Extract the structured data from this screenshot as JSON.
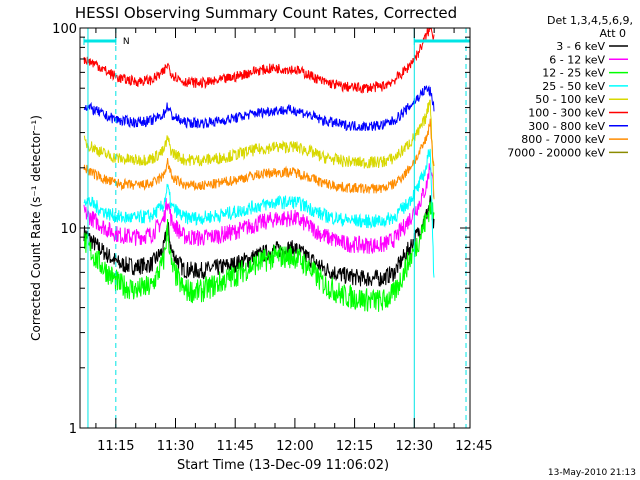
{
  "chart_data": {
    "type": "line",
    "title": "HESSI Observing Summary Count Rates, Corrected",
    "xlabel": "Start Time (13-Dec-09 11:06:02)",
    "ylabel": "Corrected Count Rate (s⁻¹ detector⁻¹)",
    "yscale": "log",
    "ylim": [
      1,
      100
    ],
    "xlim": [
      "11:06",
      "12:44"
    ],
    "x_ticks": [
      "11:15",
      "11:30",
      "11:45",
      "12:00",
      "12:15",
      "12:30",
      "12:45"
    ],
    "y_ticks": [
      "1",
      "10",
      "100"
    ],
    "legend_header": [
      "Det 1,3,4,5,6,9,",
      "Att 0"
    ],
    "legend_position": "right",
    "timestamp": "13-May-2010 21:13",
    "annotation_label": "N",
    "annotation_interval": [
      "11:07",
      "11:15"
    ],
    "annotation_interval_2": [
      "12:30",
      "12:44"
    ],
    "vertical_markers": [
      {
        "time": "11:08",
        "style": "solid",
        "color": "#00e5e5"
      },
      {
        "time": "11:15",
        "style": "dashed",
        "color": "#00e5e5"
      },
      {
        "time": "12:30",
        "style": "solid",
        "color": "#00e5e5"
      },
      {
        "time": "12:43",
        "style": "dashed",
        "color": "#00e5e5"
      }
    ],
    "series": [
      {
        "name": "3 - 6 keV",
        "color": "#000000",
        "points": [
          [
            "11:07",
            9.5
          ],
          [
            "11:10",
            8.2
          ],
          [
            "11:13",
            7.3
          ],
          [
            "11:16",
            6.6
          ],
          [
            "11:20",
            6.4
          ],
          [
            "11:24",
            6.6
          ],
          [
            "11:27",
            7.8
          ],
          [
            "11:28",
            10.5
          ],
          [
            "11:29",
            7.6
          ],
          [
            "11:32",
            6.2
          ],
          [
            "11:36",
            6.1
          ],
          [
            "11:40",
            6.3
          ],
          [
            "11:45",
            6.6
          ],
          [
            "11:50",
            7.2
          ],
          [
            "11:55",
            7.8
          ],
          [
            "12:00",
            7.9
          ],
          [
            "12:03",
            7.2
          ],
          [
            "12:07",
            6.3
          ],
          [
            "12:12",
            5.8
          ],
          [
            "12:17",
            5.6
          ],
          [
            "12:22",
            5.6
          ],
          [
            "12:25",
            6.0
          ],
          [
            "12:28",
            7.5
          ],
          [
            "12:31",
            9.5
          ],
          [
            "12:33",
            11.5
          ],
          [
            "12:34",
            13.5
          ],
          [
            "12:35",
            10.0
          ]
        ]
      },
      {
        "name": "6 - 12 keV",
        "color": "#ff00ff",
        "points": [
          [
            "11:07",
            12.0
          ],
          [
            "11:10",
            10.8
          ],
          [
            "11:13",
            9.8
          ],
          [
            "11:16",
            9.2
          ],
          [
            "11:20",
            9.0
          ],
          [
            "11:24",
            9.3
          ],
          [
            "11:27",
            11.0
          ],
          [
            "11:28",
            14.0
          ],
          [
            "11:29",
            10.8
          ],
          [
            "11:32",
            9.1
          ],
          [
            "11:36",
            8.9
          ],
          [
            "11:40",
            9.1
          ],
          [
            "11:45",
            9.6
          ],
          [
            "11:50",
            10.4
          ],
          [
            "11:55",
            11.1
          ],
          [
            "12:00",
            11.2
          ],
          [
            "12:03",
            10.4
          ],
          [
            "12:07",
            9.2
          ],
          [
            "12:12",
            8.4
          ],
          [
            "12:17",
            8.2
          ],
          [
            "12:22",
            8.2
          ],
          [
            "12:25",
            8.8
          ],
          [
            "12:28",
            10.5
          ],
          [
            "12:31",
            13.0
          ],
          [
            "12:33",
            16.0
          ],
          [
            "12:34",
            21.0
          ],
          [
            "12:35",
            15.0
          ]
        ]
      },
      {
        "name": "12 - 25 keV",
        "color": "#00ff00",
        "points": [
          [
            "11:07",
            8.6
          ],
          [
            "11:10",
            7.0
          ],
          [
            "11:13",
            6.0
          ],
          [
            "11:16",
            5.2
          ],
          [
            "11:20",
            4.9
          ],
          [
            "11:24",
            5.1
          ],
          [
            "11:27",
            6.8
          ],
          [
            "11:28",
            10.0
          ],
          [
            "11:29",
            6.4
          ],
          [
            "11:32",
            4.9
          ],
          [
            "11:36",
            4.8
          ],
          [
            "11:40",
            5.2
          ],
          [
            "11:45",
            5.8
          ],
          [
            "11:50",
            6.6
          ],
          [
            "11:55",
            7.2
          ],
          [
            "12:00",
            7.2
          ],
          [
            "12:03",
            6.5
          ],
          [
            "12:07",
            5.3
          ],
          [
            "12:12",
            4.6
          ],
          [
            "12:17",
            4.4
          ],
          [
            "12:22",
            4.3
          ],
          [
            "12:25",
            4.7
          ],
          [
            "12:28",
            6.4
          ],
          [
            "12:31",
            8.6
          ],
          [
            "12:33",
            11.0
          ],
          [
            "12:34",
            13.0
          ],
          [
            "12:35",
            11.0
          ]
        ]
      },
      {
        "name": "25 - 50 keV",
        "color": "#00ffff",
        "points": [
          [
            "11:07",
            14.2
          ],
          [
            "11:10",
            12.8
          ],
          [
            "11:13",
            11.8
          ],
          [
            "11:16",
            11.3
          ],
          [
            "11:20",
            11.2
          ],
          [
            "11:24",
            11.5
          ],
          [
            "11:27",
            13.0
          ],
          [
            "11:28",
            16.0
          ],
          [
            "11:29",
            12.8
          ],
          [
            "11:32",
            11.3
          ],
          [
            "11:36",
            11.2
          ],
          [
            "11:40",
            11.5
          ],
          [
            "11:45",
            12.0
          ],
          [
            "11:50",
            12.8
          ],
          [
            "11:55",
            13.4
          ],
          [
            "12:00",
            13.5
          ],
          [
            "12:03",
            12.8
          ],
          [
            "12:07",
            11.6
          ],
          [
            "12:12",
            11.0
          ],
          [
            "12:17",
            10.8
          ],
          [
            "12:22",
            10.8
          ],
          [
            "12:25",
            11.4
          ],
          [
            "12:28",
            13.0
          ],
          [
            "12:31",
            16.0
          ],
          [
            "12:33",
            20.0
          ],
          [
            "12:34",
            26.0
          ],
          [
            "12:35",
            5.0
          ]
        ]
      },
      {
        "name": "50 - 100 keV",
        "color": "#d8d800",
        "points": [
          [
            "11:07",
            27.0
          ],
          [
            "11:10",
            24.8
          ],
          [
            "11:13",
            23.0
          ],
          [
            "11:16",
            22.2
          ],
          [
            "11:20",
            21.8
          ],
          [
            "11:24",
            22.2
          ],
          [
            "11:27",
            24.2
          ],
          [
            "11:28",
            28.0
          ],
          [
            "11:29",
            24.0
          ],
          [
            "11:32",
            22.0
          ],
          [
            "11:36",
            21.8
          ],
          [
            "11:40",
            22.2
          ],
          [
            "11:45",
            23.2
          ],
          [
            "11:50",
            24.6
          ],
          [
            "11:55",
            25.4
          ],
          [
            "12:00",
            25.5
          ],
          [
            "12:03",
            24.5
          ],
          [
            "12:07",
            22.6
          ],
          [
            "12:12",
            21.6
          ],
          [
            "12:17",
            21.2
          ],
          [
            "12:22",
            21.4
          ],
          [
            "12:25",
            22.4
          ],
          [
            "12:28",
            25.5
          ],
          [
            "12:31",
            30.0
          ],
          [
            "12:33",
            36.0
          ],
          [
            "12:34",
            45.0
          ],
          [
            "12:35",
            14.0
          ]
        ]
      },
      {
        "name": "100 - 300 keV",
        "color": "#ff0000",
        "points": [
          [
            "11:07",
            70.0
          ],
          [
            "11:10",
            66.0
          ],
          [
            "11:13",
            60.0
          ],
          [
            "11:16",
            56.0
          ],
          [
            "11:20",
            54.0
          ],
          [
            "11:24",
            55.0
          ],
          [
            "11:27",
            60.0
          ],
          [
            "11:28",
            66.0
          ],
          [
            "11:29",
            59.0
          ],
          [
            "11:32",
            54.0
          ],
          [
            "11:36",
            53.0
          ],
          [
            "11:40",
            54.0
          ],
          [
            "11:45",
            57.0
          ],
          [
            "11:50",
            61.0
          ],
          [
            "11:55",
            63.0
          ],
          [
            "12:00",
            62.0
          ],
          [
            "12:03",
            59.0
          ],
          [
            "12:07",
            54.0
          ],
          [
            "12:12",
            51.0
          ],
          [
            "12:17",
            50.0
          ],
          [
            "12:22",
            51.0
          ],
          [
            "12:25",
            55.0
          ],
          [
            "12:28",
            62.0
          ],
          [
            "12:31",
            75.0
          ],
          [
            "12:33",
            92.0
          ],
          [
            "12:34",
            100.0
          ],
          [
            "12:35",
            90.0
          ]
        ]
      },
      {
        "name": "300 - 800 keV",
        "color": "#0000ff",
        "points": [
          [
            "11:07",
            41.0
          ],
          [
            "11:10",
            38.5
          ],
          [
            "11:13",
            36.0
          ],
          [
            "11:16",
            34.5
          ],
          [
            "11:20",
            33.8
          ],
          [
            "11:24",
            34.4
          ],
          [
            "11:27",
            37.0
          ],
          [
            "11:28",
            41.0
          ],
          [
            "11:29",
            36.5
          ],
          [
            "11:32",
            33.8
          ],
          [
            "11:36",
            33.4
          ],
          [
            "11:40",
            34.0
          ],
          [
            "11:45",
            35.5
          ],
          [
            "11:50",
            37.5
          ],
          [
            "11:55",
            38.8
          ],
          [
            "12:00",
            38.8
          ],
          [
            "12:03",
            37.2
          ],
          [
            "12:07",
            34.5
          ],
          [
            "12:12",
            32.8
          ],
          [
            "12:17",
            32.2
          ],
          [
            "12:22",
            32.6
          ],
          [
            "12:25",
            34.5
          ],
          [
            "12:28",
            39.0
          ],
          [
            "12:31",
            45.0
          ],
          [
            "12:33",
            50.0
          ],
          [
            "12:34",
            48.0
          ],
          [
            "12:35",
            40.0
          ]
        ]
      },
      {
        "name": "800 - 7000 keV",
        "color": "#ff8c00",
        "points": [
          [
            "11:07",
            20.0
          ],
          [
            "11:10",
            18.4
          ],
          [
            "11:13",
            17.2
          ],
          [
            "11:16",
            16.6
          ],
          [
            "11:20",
            16.3
          ],
          [
            "11:24",
            16.6
          ],
          [
            "11:27",
            18.2
          ],
          [
            "11:28",
            21.5
          ],
          [
            "11:29",
            18.0
          ],
          [
            "11:32",
            16.4
          ],
          [
            "11:36",
            16.2
          ],
          [
            "11:40",
            16.6
          ],
          [
            "11:45",
            17.4
          ],
          [
            "11:50",
            18.4
          ],
          [
            "11:55",
            19.0
          ],
          [
            "12:00",
            19.0
          ],
          [
            "12:03",
            18.2
          ],
          [
            "12:07",
            16.8
          ],
          [
            "12:12",
            16.0
          ],
          [
            "12:17",
            15.7
          ],
          [
            "12:22",
            15.8
          ],
          [
            "12:25",
            16.6
          ],
          [
            "12:28",
            19.0
          ],
          [
            "12:31",
            23.0
          ],
          [
            "12:33",
            28.0
          ],
          [
            "12:34",
            34.0
          ],
          [
            "12:35",
            19.0
          ]
        ]
      },
      {
        "name": "7000 - 20000 keV",
        "color": "#8b8b00",
        "points": []
      }
    ]
  }
}
